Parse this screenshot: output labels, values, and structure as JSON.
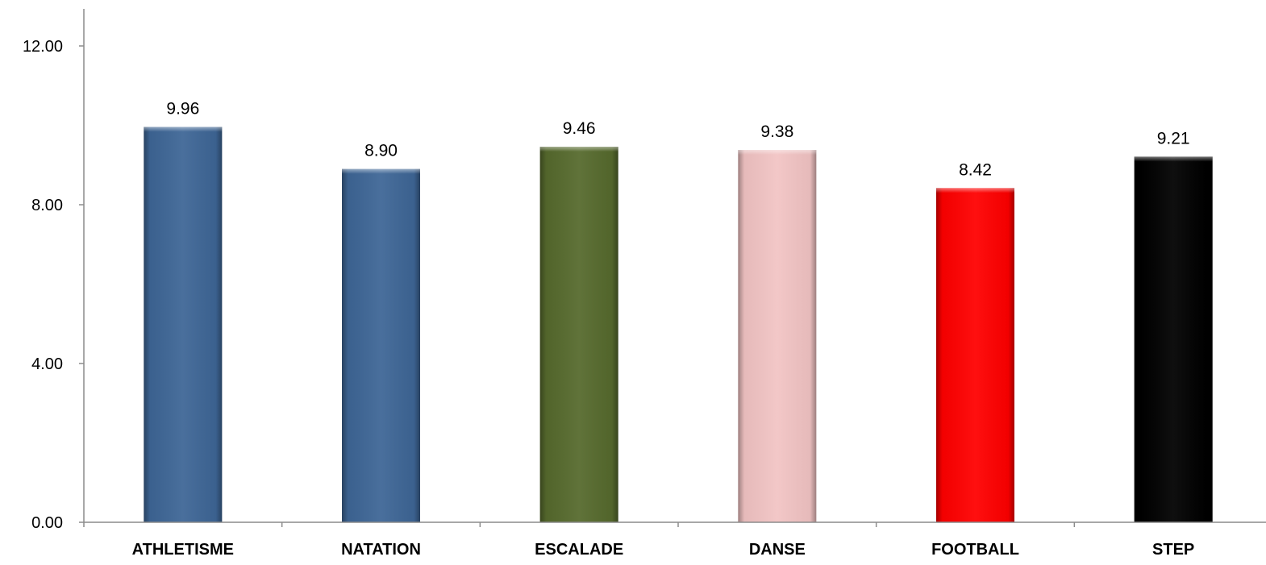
{
  "chart_data": {
    "type": "bar",
    "categories": [
      "ATHLETISME",
      "NATATION",
      "ESCALADE",
      "DANSE",
      "FOOTBALL",
      "STEP"
    ],
    "values": [
      9.96,
      8.9,
      9.46,
      9.38,
      8.42,
      9.21
    ],
    "value_labels": [
      "9.96",
      "8.90",
      "9.46",
      "9.38",
      "8.42",
      "9.21"
    ],
    "colors": [
      "#3e6696",
      "#3e6696",
      "#566a2d",
      "#f2c4c4",
      "#ff0000",
      "#000000"
    ],
    "yticks": [
      0,
      4,
      8,
      12
    ],
    "ytick_labels": [
      "0.00",
      "4.00",
      "8.00",
      "12.00"
    ],
    "ylim": [
      0,
      13
    ],
    "grid": false,
    "legend": "none"
  }
}
